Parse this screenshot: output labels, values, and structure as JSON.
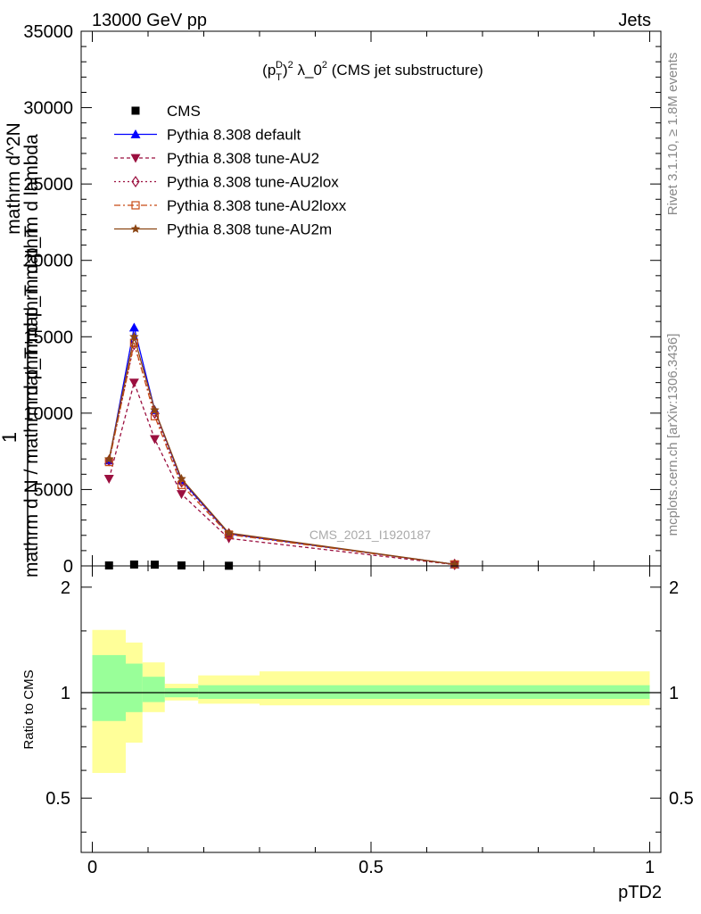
{
  "header": {
    "left": "13000 GeV pp",
    "right": "Jets"
  },
  "side_labels": {
    "rivet": "Rivet 3.1.10, ≥ 1.8M events",
    "mcplots": "mcplots.cern.ch [arXiv:1306.3436]"
  },
  "watermark": "CMS_2021_I1920187",
  "colors": {
    "cms": "#000000",
    "default": "#0000ff",
    "au2": "#9b0f3f",
    "au2lox": "#9b0f3f",
    "au2loxx": "#c84b14",
    "au2m": "#8b4513",
    "band_inner": "#99ff99",
    "band_outer": "#ffff99"
  },
  "chart_data": [
    {
      "type": "line",
      "title": "(p_T^D)^2 λ_0^2 (CMS jet substructure)",
      "ylabel_lines": [
        "1",
        "mathrm d N / mathrm d p_T mathrm d p_T",
        "mathrm d^2N",
        "mathrm d p_T mathrm d lambda"
      ],
      "xlim": [
        -0.02,
        1.02
      ],
      "ylim": [
        0,
        35000
      ],
      "yticks": [
        0,
        5000,
        10000,
        15000,
        20000,
        25000,
        30000,
        35000
      ],
      "ytick_labels": [
        "0",
        "5000",
        "10000",
        "15000",
        "20000",
        "25000",
        "30000",
        "35000"
      ],
      "x": [
        0.03,
        0.075,
        0.112,
        0.16,
        0.245,
        0.65
      ],
      "series": [
        {
          "name": "CMS",
          "key": "cms",
          "marker": "square",
          "dash": "none",
          "values": [
            30,
            90,
            80,
            30,
            10,
            0
          ]
        },
        {
          "name": "Pythia 8.308 default",
          "key": "default",
          "marker": "triangle-up",
          "dash": "none",
          "values": [
            6900,
            15600,
            10200,
            5600,
            2100,
            100
          ]
        },
        {
          "name": "Pythia 8.308 tune-AU2",
          "key": "au2",
          "marker": "triangle-down",
          "dash": "4,3",
          "values": [
            5700,
            12000,
            8300,
            4700,
            1800,
            80
          ]
        },
        {
          "name": "Pythia 8.308 tune-AU2lox",
          "key": "au2lox",
          "marker": "diamond-open",
          "dash": "2,3",
          "values": [
            6900,
            14500,
            10000,
            5500,
            2100,
            100
          ]
        },
        {
          "name": "Pythia 8.308 tune-AU2loxx",
          "key": "au2loxx",
          "marker": "square-open",
          "dash": "7,3,2,3",
          "values": [
            6800,
            14600,
            9800,
            5300,
            2050,
            100
          ]
        },
        {
          "name": "Pythia 8.308 tune-AU2m",
          "key": "au2m",
          "marker": "star",
          "dash": "none",
          "values": [
            7000,
            15000,
            10200,
            5700,
            2150,
            100
          ]
        }
      ]
    },
    {
      "type": "area",
      "ylabel": "Ratio to CMS",
      "xlabel": "pTD2",
      "xlim": [
        -0.02,
        1.02
      ],
      "ylim": [
        0.35,
        2.3
      ],
      "xticks": [
        0,
        0.5,
        1
      ],
      "xtick_labels": [
        "0",
        "0.5",
        "1"
      ],
      "yticks": [
        0.5,
        1,
        2
      ],
      "ytick_labels": [
        "0.5",
        "1",
        "2"
      ],
      "bins": [
        {
          "x0": 0.0,
          "x1": 0.06,
          "inner": [
            0.83,
            1.28
          ],
          "outer": [
            0.59,
            1.51
          ]
        },
        {
          "x0": 0.06,
          "x1": 0.09,
          "inner": [
            0.88,
            1.21
          ],
          "outer": [
            0.72,
            1.39
          ]
        },
        {
          "x0": 0.09,
          "x1": 0.13,
          "inner": [
            0.94,
            1.11
          ],
          "outer": [
            0.88,
            1.22
          ]
        },
        {
          "x0": 0.13,
          "x1": 0.19,
          "inner": [
            0.97,
            1.03
          ],
          "outer": [
            0.95,
            1.06
          ]
        },
        {
          "x0": 0.19,
          "x1": 0.3,
          "inner": [
            0.96,
            1.05
          ],
          "outer": [
            0.93,
            1.12
          ]
        },
        {
          "x0": 0.3,
          "x1": 1.0,
          "inner": [
            0.96,
            1.05
          ],
          "outer": [
            0.92,
            1.15
          ]
        }
      ]
    }
  ]
}
